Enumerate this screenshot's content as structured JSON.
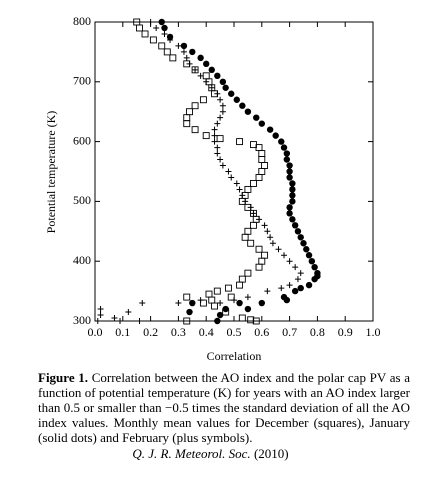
{
  "chart_data": {
    "type": "scatter",
    "xlabel": "Correlation",
    "ylabel": "Potential temperature (K)",
    "xlim": [
      0,
      1
    ],
    "ylim": [
      300,
      800
    ],
    "xticks": [
      {
        "value": 0,
        "label": "0.0"
      },
      0.1,
      0.2,
      0.3,
      0.4,
      0.5,
      0.6,
      0.7,
      0.8,
      0.9,
      {
        "value": 1,
        "label": "1.0"
      }
    ],
    "yticks": [
      300,
      400,
      500,
      600,
      700,
      800
    ],
    "series": [
      {
        "marker": "square",
        "color": "#000000",
        "x": [
          0.15,
          0.16,
          0.18,
          0.21,
          0.24,
          0.26,
          0.28,
          0.33,
          0.36,
          0.4,
          0.41,
          0.42,
          0.43,
          0.39,
          0.36,
          0.34,
          0.33,
          0.33,
          0.36,
          0.4,
          0.45,
          0.52,
          0.57,
          0.59,
          0.6,
          0.6,
          0.61,
          0.6,
          0.59,
          0.57,
          0.55,
          0.54,
          0.53,
          0.55,
          0.57,
          0.58,
          0.57,
          0.55,
          0.54,
          0.56,
          0.59,
          0.61,
          0.6,
          0.59,
          0.55,
          0.53,
          0.52,
          0.48,
          0.44,
          0.49,
          0.42,
          0.41,
          0.43,
          0.33,
          0.39,
          0.47,
          0.53,
          0.56,
          0.33,
          0.58
        ],
        "values": [
          800,
          790,
          780,
          770,
          760,
          750,
          740,
          730,
          720,
          710,
          700,
          690,
          680,
          670,
          660,
          650,
          640,
          630,
          620,
          610,
          605,
          600,
          595,
          590,
          580,
          570,
          560,
          550,
          540,
          530,
          520,
          510,
          500,
          490,
          480,
          470,
          460,
          450,
          440,
          430,
          420,
          410,
          400,
          390,
          380,
          370,
          360,
          355,
          350,
          340,
          335,
          345,
          325,
          340,
          330,
          315,
          305,
          302,
          300,
          300
        ]
      },
      {
        "marker": "circle",
        "color": "#000000",
        "x": [
          0.24,
          0.25,
          0.27,
          0.32,
          0.35,
          0.38,
          0.4,
          0.42,
          0.44,
          0.46,
          0.47,
          0.49,
          0.51,
          0.53,
          0.55,
          0.58,
          0.6,
          0.63,
          0.65,
          0.67,
          0.68,
          0.69,
          0.69,
          0.7,
          0.7,
          0.7,
          0.71,
          0.71,
          0.71,
          0.71,
          0.7,
          0.7,
          0.71,
          0.72,
          0.73,
          0.74,
          0.75,
          0.76,
          0.77,
          0.78,
          0.79,
          0.8,
          0.8,
          0.79,
          0.77,
          0.74,
          0.72,
          0.68,
          0.69,
          0.6,
          0.55,
          0.52,
          0.47,
          0.45,
          0.44,
          0.35,
          0.34
        ],
        "values": [
          800,
          790,
          775,
          760,
          750,
          740,
          730,
          720,
          710,
          700,
          690,
          680,
          670,
          660,
          650,
          640,
          630,
          620,
          610,
          600,
          590,
          580,
          570,
          560,
          550,
          540,
          530,
          520,
          510,
          500,
          490,
          480,
          470,
          460,
          450,
          440,
          430,
          420,
          410,
          400,
          390,
          380,
          375,
          370,
          360,
          355,
          350,
          340,
          335,
          330,
          320,
          330,
          320,
          310,
          300,
          330,
          315
        ]
      },
      {
        "marker": "plus",
        "color": "#000000",
        "x": [
          0.2,
          0.22,
          0.25,
          0.27,
          0.3,
          0.32,
          0.33,
          0.34,
          0.36,
          0.38,
          0.4,
          0.42,
          0.44,
          0.45,
          0.46,
          0.46,
          0.45,
          0.44,
          0.43,
          0.43,
          0.43,
          0.44,
          0.44,
          0.45,
          0.46,
          0.48,
          0.49,
          0.51,
          0.52,
          0.53,
          0.54,
          0.56,
          0.57,
          0.59,
          0.61,
          0.62,
          0.63,
          0.64,
          0.66,
          0.68,
          0.7,
          0.72,
          0.74,
          0.73,
          0.7,
          0.67,
          0.62,
          0.55,
          0.5,
          0.45,
          0.38,
          0.3,
          0.17,
          0.12,
          0.07,
          0.02,
          0.02,
          0.01,
          0.09,
          0.16
        ],
        "values": [
          800,
          790,
          780,
          770,
          760,
          750,
          740,
          730,
          720,
          710,
          700,
          690,
          680,
          670,
          660,
          650,
          640,
          630,
          620,
          610,
          600,
          590,
          580,
          570,
          560,
          550,
          540,
          530,
          520,
          510,
          500,
          490,
          480,
          470,
          460,
          450,
          440,
          430,
          420,
          410,
          400,
          390,
          380,
          370,
          360,
          355,
          350,
          340,
          335,
          330,
          335,
          330,
          330,
          315,
          305,
          320,
          310,
          300,
          300,
          300
        ]
      }
    ]
  },
  "caption": {
    "label": "Figure 1.",
    "text": "Correlation between the AO index and the polar cap PV as a function of potential temperature (K) for years with an AO index larger than 0.5 or smaller than −0.5 times the standard deviation of all the AO index values. Monthly mean values for December (squares), January (solid dots) and February (plus symbols)."
  },
  "citation": {
    "journal": "Q. J. R. Meteorol. Soc.",
    "year": "(2010)"
  }
}
